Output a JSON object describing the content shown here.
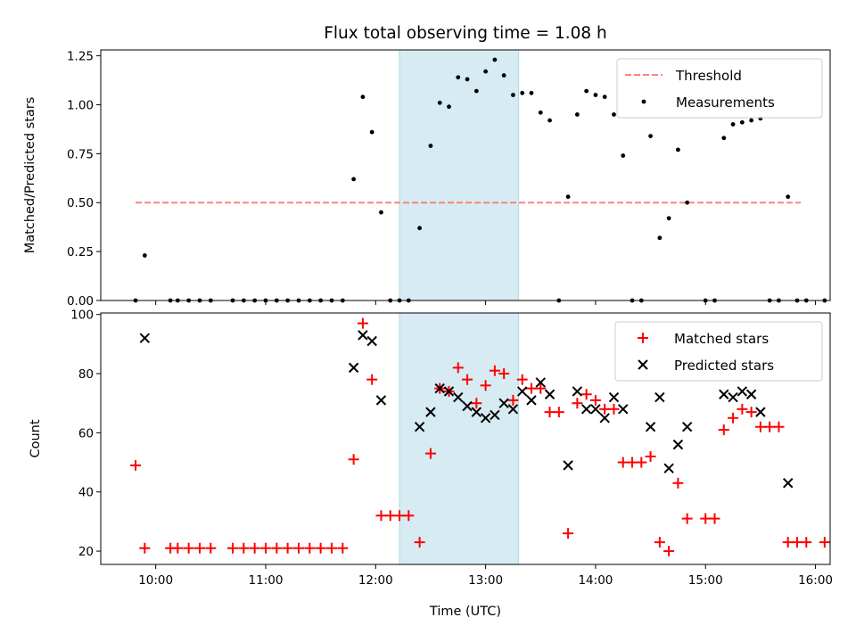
{
  "title": "Flux total observing time = 1.08 h",
  "colors": {
    "threshold": "#ff8080",
    "measurements": "#000000",
    "matched": "#ff0000",
    "predicted": "#000000",
    "shade": "#add8e6"
  },
  "chart_data": [
    {
      "type": "scatter",
      "ylabel": "Matched/Predicted stars",
      "xlim": [
        "09:30",
        "16:08"
      ],
      "ylim": [
        0,
        1.28
      ],
      "yticks": [
        "0.00",
        "0.25",
        "0.50",
        "0.75",
        "1.00",
        "1.25"
      ],
      "shaded_region": [
        "12:13",
        "13:18"
      ],
      "threshold": {
        "name": "Threshold",
        "y": 0.5,
        "x_range": [
          "09:49",
          "15:52"
        ]
      },
      "legend": [
        "Threshold",
        "Measurements"
      ],
      "legend_position": "top-right",
      "series": [
        {
          "name": "Measurements",
          "marker": "dot",
          "points": [
            [
              "09:49",
              0
            ],
            [
              "09:54",
              0.23
            ],
            [
              "10:08",
              0
            ],
            [
              "10:12",
              0
            ],
            [
              "10:18",
              0
            ],
            [
              "10:24",
              0
            ],
            [
              "10:30",
              0
            ],
            [
              "10:42",
              0
            ],
            [
              "10:48",
              0
            ],
            [
              "10:54",
              0
            ],
            [
              "11:00",
              0
            ],
            [
              "11:06",
              0
            ],
            [
              "11:12",
              0
            ],
            [
              "11:18",
              0
            ],
            [
              "11:24",
              0
            ],
            [
              "11:30",
              0
            ],
            [
              "11:36",
              0
            ],
            [
              "11:42",
              0
            ],
            [
              "11:48",
              0.62
            ],
            [
              "11:53",
              1.04
            ],
            [
              "11:58",
              0.86
            ],
            [
              "12:03",
              0.45
            ],
            [
              "12:08",
              0
            ],
            [
              "12:13",
              0
            ],
            [
              "12:18",
              0
            ],
            [
              "12:24",
              0.37
            ],
            [
              "12:30",
              0.79
            ],
            [
              "12:35",
              1.01
            ],
            [
              "12:40",
              0.99
            ],
            [
              "12:45",
              1.14
            ],
            [
              "12:50",
              1.13
            ],
            [
              "12:55",
              1.07
            ],
            [
              "13:00",
              1.17
            ],
            [
              "13:05",
              1.23
            ],
            [
              "13:10",
              1.15
            ],
            [
              "13:15",
              1.05
            ],
            [
              "13:20",
              1.06
            ],
            [
              "13:25",
              1.06
            ],
            [
              "13:30",
              0.96
            ],
            [
              "13:35",
              0.92
            ],
            [
              "13:40",
              0
            ],
            [
              "13:45",
              0.53
            ],
            [
              "13:50",
              0.95
            ],
            [
              "13:55",
              1.07
            ],
            [
              "14:00",
              1.05
            ],
            [
              "14:05",
              1.04
            ],
            [
              "14:10",
              0.95
            ],
            [
              "14:15",
              0.74
            ],
            [
              "14:20",
              0
            ],
            [
              "14:25",
              0
            ],
            [
              "14:30",
              0.84
            ],
            [
              "14:35",
              0.32
            ],
            [
              "14:40",
              0.42
            ],
            [
              "14:45",
              0.77
            ],
            [
              "14:50",
              0.5
            ],
            [
              "15:00",
              0
            ],
            [
              "15:05",
              0
            ],
            [
              "15:10",
              0.83
            ],
            [
              "15:15",
              0.9
            ],
            [
              "15:20",
              0.91
            ],
            [
              "15:25",
              0.92
            ],
            [
              "15:30",
              0.93
            ],
            [
              "15:35",
              0
            ],
            [
              "15:40",
              0
            ],
            [
              "15:45",
              0.53
            ],
            [
              "15:50",
              0
            ],
            [
              "15:55",
              0
            ],
            [
              "16:05",
              0
            ]
          ]
        }
      ]
    },
    {
      "type": "scatter",
      "xlabel": "Time (UTC)",
      "ylabel": "Count",
      "xlim": [
        "09:30",
        "16:08"
      ],
      "ylim": [
        15.5,
        100.5
      ],
      "xticks": [
        "10:00",
        "11:00",
        "12:00",
        "13:00",
        "14:00",
        "15:00",
        "16:00"
      ],
      "yticks": [
        "20",
        "40",
        "60",
        "80",
        "100"
      ],
      "shaded_region": [
        "12:13",
        "13:18"
      ],
      "legend": [
        "Matched stars",
        "Predicted stars"
      ],
      "legend_position": "top-right",
      "series": [
        {
          "name": "Matched stars",
          "marker": "plus",
          "points": [
            [
              "09:49",
              49
            ],
            [
              "09:54",
              21
            ],
            [
              "10:08",
              21
            ],
            [
              "10:12",
              21
            ],
            [
              "10:18",
              21
            ],
            [
              "10:24",
              21
            ],
            [
              "10:30",
              21
            ],
            [
              "10:42",
              21
            ],
            [
              "10:48",
              21
            ],
            [
              "10:54",
              21
            ],
            [
              "11:00",
              21
            ],
            [
              "11:06",
              21
            ],
            [
              "11:12",
              21
            ],
            [
              "11:18",
              21
            ],
            [
              "11:24",
              21
            ],
            [
              "11:30",
              21
            ],
            [
              "11:36",
              21
            ],
            [
              "11:42",
              21
            ],
            [
              "11:48",
              51
            ],
            [
              "11:53",
              97
            ],
            [
              "11:58",
              78
            ],
            [
              "12:03",
              32
            ],
            [
              "12:08",
              32
            ],
            [
              "12:13",
              32
            ],
            [
              "12:18",
              32
            ],
            [
              "12:24",
              23
            ],
            [
              "12:30",
              53
            ],
            [
              "12:35",
              75
            ],
            [
              "12:40",
              74
            ],
            [
              "12:45",
              82
            ],
            [
              "12:50",
              78
            ],
            [
              "12:55",
              70
            ],
            [
              "13:00",
              76
            ],
            [
              "13:05",
              81
            ],
            [
              "13:10",
              80
            ],
            [
              "13:15",
              71
            ],
            [
              "13:20",
              78
            ],
            [
              "13:25",
              75
            ],
            [
              "13:30",
              75
            ],
            [
              "13:35",
              67
            ],
            [
              "13:40",
              67
            ],
            [
              "13:45",
              26
            ],
            [
              "13:50",
              70
            ],
            [
              "13:55",
              73
            ],
            [
              "14:00",
              71
            ],
            [
              "14:05",
              68
            ],
            [
              "14:10",
              68
            ],
            [
              "14:15",
              50
            ],
            [
              "14:20",
              50
            ],
            [
              "14:25",
              50
            ],
            [
              "14:30",
              52
            ],
            [
              "14:35",
              23
            ],
            [
              "14:40",
              20
            ],
            [
              "14:45",
              43
            ],
            [
              "14:50",
              31
            ],
            [
              "15:00",
              31
            ],
            [
              "15:05",
              31
            ],
            [
              "15:10",
              61
            ],
            [
              "15:15",
              65
            ],
            [
              "15:20",
              68
            ],
            [
              "15:25",
              67
            ],
            [
              "15:30",
              62
            ],
            [
              "15:35",
              62
            ],
            [
              "15:40",
              62
            ],
            [
              "15:45",
              23
            ],
            [
              "15:50",
              23
            ],
            [
              "15:55",
              23
            ],
            [
              "16:05",
              23
            ]
          ]
        },
        {
          "name": "Predicted stars",
          "marker": "x",
          "points": [
            [
              "09:54",
              92
            ],
            [
              "11:48",
              82
            ],
            [
              "11:53",
              93
            ],
            [
              "11:58",
              91
            ],
            [
              "12:03",
              71
            ],
            [
              "12:24",
              62
            ],
            [
              "12:30",
              67
            ],
            [
              "12:35",
              75
            ],
            [
              "12:40",
              74
            ],
            [
              "12:45",
              72
            ],
            [
              "12:50",
              69
            ],
            [
              "12:55",
              67
            ],
            [
              "13:00",
              65
            ],
            [
              "13:05",
              66
            ],
            [
              "13:10",
              70
            ],
            [
              "13:15",
              68
            ],
            [
              "13:20",
              74
            ],
            [
              "13:25",
              71
            ],
            [
              "13:30",
              77
            ],
            [
              "13:35",
              73
            ],
            [
              "13:45",
              49
            ],
            [
              "13:50",
              74
            ],
            [
              "13:55",
              68
            ],
            [
              "14:00",
              68
            ],
            [
              "14:05",
              65
            ],
            [
              "14:10",
              72
            ],
            [
              "14:15",
              68
            ],
            [
              "14:30",
              62
            ],
            [
              "14:35",
              72
            ],
            [
              "14:40",
              48
            ],
            [
              "14:45",
              56
            ],
            [
              "14:50",
              62
            ],
            [
              "15:10",
              73
            ],
            [
              "15:15",
              72
            ],
            [
              "15:20",
              74
            ],
            [
              "15:25",
              73
            ],
            [
              "15:30",
              67
            ],
            [
              "15:45",
              43
            ]
          ]
        }
      ]
    }
  ]
}
